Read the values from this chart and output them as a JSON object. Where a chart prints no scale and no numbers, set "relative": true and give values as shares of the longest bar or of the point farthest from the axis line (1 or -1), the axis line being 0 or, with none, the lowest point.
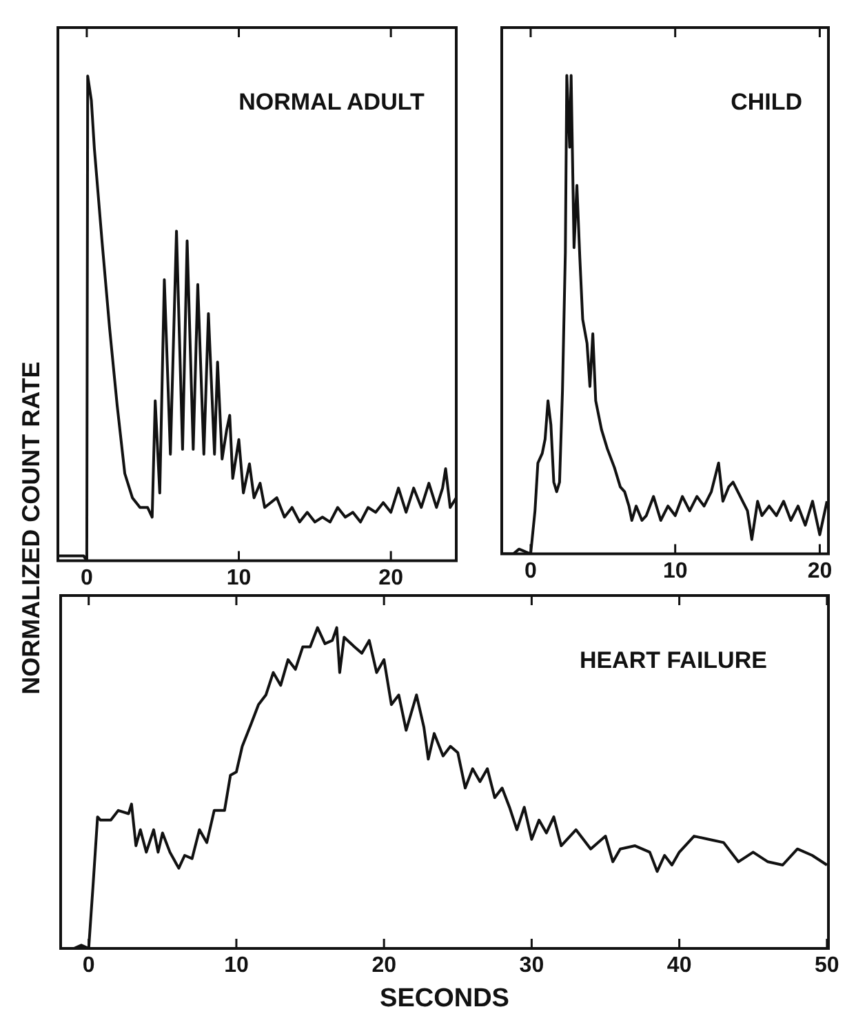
{
  "chart_data": [
    {
      "type": "line",
      "title": "NORMAL ADULT",
      "ylabel": "NORMALIZED COUNT RATE",
      "relative": true,
      "xlim": [
        -1.9,
        24.3
      ],
      "xticks": [
        0,
        10,
        20
      ],
      "tick_labels": "x",
      "marker": "none",
      "x": [
        -1.9,
        -1,
        -0.2,
        0,
        0.06,
        0.3,
        0.5,
        1,
        1.5,
        2,
        2.5,
        3,
        3.5,
        4,
        4.3,
        4.5,
        4.8,
        5.1,
        5.5,
        5.9,
        6.3,
        6.6,
        7,
        7.3,
        7.7,
        8,
        8.4,
        8.6,
        8.9,
        9.2,
        9.4,
        9.6,
        10,
        10.3,
        10.7,
        11,
        11.4,
        11.7,
        12.5,
        13,
        13.5,
        14,
        14.5,
        15,
        15.5,
        16,
        16.5,
        17,
        17.5,
        18,
        18.5,
        19,
        19.5,
        20,
        20.5,
        21,
        21.5,
        22,
        22.5,
        23,
        23.4,
        23.6,
        23.9,
        24.3
      ],
      "series": [
        {
          "color": "#111111",
          "values": [
            0.01,
            0.01,
            0.01,
            0,
            1,
            0.95,
            0.85,
            0.66,
            0.48,
            0.32,
            0.18,
            0.13,
            0.11,
            0.11,
            0.09,
            0.33,
            0.14,
            0.58,
            0.22,
            0.68,
            0.23,
            0.66,
            0.23,
            0.57,
            0.22,
            0.51,
            0.22,
            0.41,
            0.21,
            0.27,
            0.3,
            0.17,
            0.25,
            0.14,
            0.2,
            0.13,
            0.16,
            0.11,
            0.13,
            0.09,
            0.11,
            0.08,
            0.1,
            0.08,
            0.09,
            0.08,
            0.11,
            0.09,
            0.1,
            0.08,
            0.11,
            0.1,
            0.12,
            0.1,
            0.15,
            0.1,
            0.15,
            0.11,
            0.16,
            0.11,
            0.15,
            0.19,
            0.11,
            0.13
          ]
        }
      ]
    },
    {
      "type": "line",
      "title": "CHILD",
      "relative": true,
      "xlim": [
        -2,
        20.6
      ],
      "xticks": [
        0,
        10,
        20
      ],
      "tick_labels": "x",
      "marker": "none",
      "x": [
        -2,
        -1.2,
        -0.8,
        0,
        0.3,
        0.5,
        0.8,
        1,
        1.2,
        1.4,
        1.6,
        1.8,
        2,
        2.2,
        2.4,
        2.5,
        2.7,
        2.8,
        3,
        3.2,
        3.4,
        3.6,
        3.9,
        4.1,
        4.3,
        4.5,
        4.9,
        5.3,
        5.8,
        6.2,
        6.5,
        6.8,
        7,
        7.3,
        7.7,
        8,
        8.5,
        9,
        9.5,
        10,
        10.5,
        11,
        11.5,
        12,
        12.5,
        13,
        13.3,
        13.7,
        14,
        14.5,
        15,
        15.3,
        15.7,
        16,
        16.5,
        17,
        17.5,
        18,
        18.5,
        19,
        19.5,
        20,
        20.5
      ],
      "series": [
        {
          "color": "#111111",
          "values": [
            0,
            0,
            0.01,
            0,
            0.09,
            0.19,
            0.21,
            0.24,
            0.32,
            0.27,
            0.15,
            0.13,
            0.15,
            0.34,
            0.63,
            1,
            0.85,
            1,
            0.64,
            0.77,
            0.62,
            0.49,
            0.44,
            0.35,
            0.46,
            0.32,
            0.26,
            0.22,
            0.18,
            0.14,
            0.13,
            0.1,
            0.07,
            0.1,
            0.07,
            0.08,
            0.12,
            0.07,
            0.1,
            0.08,
            0.12,
            0.09,
            0.12,
            0.1,
            0.13,
            0.19,
            0.11,
            0.14,
            0.15,
            0.12,
            0.09,
            0.03,
            0.11,
            0.08,
            0.1,
            0.08,
            0.11,
            0.07,
            0.1,
            0.06,
            0.11,
            0.04,
            0.11
          ]
        }
      ]
    },
    {
      "type": "line",
      "title": "HEART FAILURE",
      "xlabel": "SECONDS",
      "relative": true,
      "xlim": [
        -1.9,
        50.1
      ],
      "xticks": [
        0,
        10,
        20,
        30,
        40,
        50
      ],
      "tick_labels": "x",
      "marker": "none",
      "x": [
        -1.9,
        -1,
        -0.5,
        0,
        0.3,
        0.6,
        0.8,
        1.5,
        2,
        2.7,
        2.9,
        3.2,
        3.5,
        3.9,
        4.4,
        4.7,
        5,
        5.5,
        6.1,
        6.5,
        7,
        7.5,
        8,
        8.5,
        9.2,
        9.6,
        10,
        10.4,
        11,
        11.5,
        12,
        12.5,
        13,
        13.5,
        14,
        14.5,
        15,
        15.5,
        16,
        16.5,
        16.8,
        17,
        17.3,
        18,
        18.5,
        19,
        19.5,
        20,
        20.5,
        21,
        21.5,
        22.2,
        22.7,
        23,
        23.4,
        24,
        24.5,
        25,
        25.5,
        26,
        26.5,
        27,
        27.5,
        28,
        28.5,
        29,
        29.5,
        30,
        30.5,
        31,
        31.5,
        32,
        33,
        34,
        35,
        35.5,
        36,
        37,
        38,
        38.5,
        39,
        39.5,
        40,
        41,
        42,
        43,
        44,
        45,
        46,
        47,
        48,
        49,
        50
      ],
      "series": [
        {
          "color": "#111111",
          "values": [
            0,
            0,
            0.01,
            0,
            0.2,
            0.41,
            0.4,
            0.4,
            0.43,
            0.42,
            0.45,
            0.32,
            0.37,
            0.3,
            0.37,
            0.3,
            0.36,
            0.3,
            0.25,
            0.29,
            0.28,
            0.37,
            0.33,
            0.43,
            0.43,
            0.54,
            0.55,
            0.63,
            0.7,
            0.76,
            0.79,
            0.86,
            0.82,
            0.9,
            0.87,
            0.94,
            0.94,
            1,
            0.95,
            0.96,
            1,
            0.86,
            0.97,
            0.94,
            0.92,
            0.96,
            0.86,
            0.9,
            0.76,
            0.79,
            0.68,
            0.79,
            0.69,
            0.59,
            0.67,
            0.6,
            0.63,
            0.61,
            0.5,
            0.56,
            0.52,
            0.56,
            0.47,
            0.5,
            0.44,
            0.37,
            0.44,
            0.34,
            0.4,
            0.36,
            0.41,
            0.32,
            0.37,
            0.31,
            0.35,
            0.27,
            0.31,
            0.32,
            0.3,
            0.24,
            0.29,
            0.26,
            0.3,
            0.35,
            0.34,
            0.33,
            0.27,
            0.3,
            0.27,
            0.26,
            0.31,
            0.29,
            0.26
          ]
        }
      ]
    }
  ]
}
